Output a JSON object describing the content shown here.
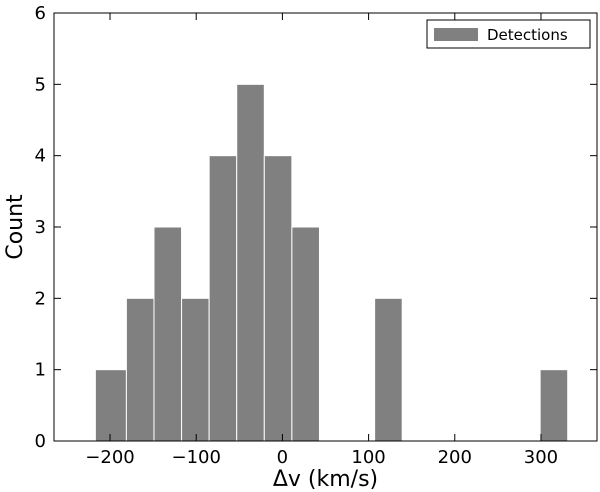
{
  "chart_data": {
    "type": "bar",
    "subtype": "histogram",
    "xlabel": "Δv (km/s)",
    "ylabel": "Count",
    "xlim": [
      -265,
      365
    ],
    "ylim": [
      0,
      6
    ],
    "xticks": [
      -200,
      -100,
      0,
      100,
      200,
      300
    ],
    "xtick_labels": [
      "−200",
      "−100",
      "0",
      "100",
      "200",
      "300"
    ],
    "yticks": [
      0,
      1,
      2,
      3,
      4,
      5,
      6
    ],
    "bar_color": "#808080",
    "legend": {
      "position": "top-right",
      "entries": [
        "Detections"
      ]
    },
    "grid": false,
    "series": [
      {
        "name": "Detections",
        "bins": [
          {
            "x0": -217,
            "x1": -181,
            "count": 1
          },
          {
            "x0": -181,
            "x1": -149,
            "count": 2
          },
          {
            "x0": -149,
            "x1": -117,
            "count": 3
          },
          {
            "x0": -117,
            "x1": -85,
            "count": 2
          },
          {
            "x0": -85,
            "x1": -53,
            "count": 4
          },
          {
            "x0": -53,
            "x1": -21,
            "count": 5
          },
          {
            "x0": -21,
            "x1": 11,
            "count": 4
          },
          {
            "x0": 11,
            "x1": 43,
            "count": 3
          },
          {
            "x0": 43,
            "x1": 75,
            "count": 0
          },
          {
            "x0": 75,
            "x1": 107,
            "count": 0
          },
          {
            "x0": 107,
            "x1": 139,
            "count": 2
          },
          {
            "x0": 139,
            "x1": 171,
            "count": 0
          },
          {
            "x0": 171,
            "x1": 203,
            "count": 0
          },
          {
            "x0": 203,
            "x1": 235,
            "count": 0
          },
          {
            "x0": 235,
            "x1": 267,
            "count": 0
          },
          {
            "x0": 267,
            "x1": 299,
            "count": 0
          },
          {
            "x0": 299,
            "x1": 331,
            "count": 1
          }
        ]
      }
    ]
  }
}
